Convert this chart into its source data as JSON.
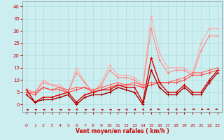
{
  "xlabel": "Vent moyen/en rafales ( km/h )",
  "bg_color": "#cceef0",
  "grid_color": "#aadddd",
  "x_ticks": [
    0,
    1,
    2,
    3,
    4,
    5,
    6,
    7,
    8,
    9,
    10,
    11,
    12,
    13,
    14,
    15,
    16,
    17,
    18,
    19,
    20,
    21,
    22,
    23
  ],
  "ylim": [
    -3,
    42
  ],
  "xlim": [
    -0.5,
    23.5
  ],
  "yticks": [
    0,
    5,
    10,
    15,
    20,
    25,
    30,
    35,
    40
  ],
  "lines": [
    {
      "x": [
        0,
        1,
        2,
        3,
        4,
        5,
        6,
        7,
        8,
        9,
        10,
        11,
        12,
        13,
        14,
        15,
        16,
        17,
        18,
        19,
        20,
        21,
        22,
        23
      ],
      "y": [
        6,
        5,
        10,
        8,
        8,
        5,
        15,
        9,
        5,
        9,
        16,
        12,
        12,
        11,
        8,
        36,
        21,
        15,
        15,
        15,
        13,
        25,
        31,
        31
      ],
      "color": "#ffaaaa",
      "lw": 0.8,
      "marker": "+",
      "ms": 3
    },
    {
      "x": [
        0,
        1,
        2,
        3,
        4,
        5,
        6,
        7,
        8,
        9,
        10,
        11,
        12,
        13,
        14,
        15,
        16,
        17,
        18,
        19,
        20,
        21,
        22,
        23
      ],
      "y": [
        6,
        5,
        9,
        8,
        7,
        5,
        13,
        9,
        5,
        8,
        14,
        11,
        11,
        10,
        7,
        31,
        18,
        13,
        14,
        14,
        12,
        22,
        28,
        28
      ],
      "color": "#ff8888",
      "lw": 0.8,
      "marker": "+",
      "ms": 3
    },
    {
      "x": [
        0,
        1,
        2,
        3,
        4,
        5,
        6,
        7,
        8,
        9,
        10,
        11,
        12,
        13,
        14,
        15,
        16,
        17,
        18,
        19,
        20,
        21,
        22,
        23
      ],
      "y": [
        5,
        5,
        7,
        6,
        7,
        6,
        7,
        7,
        6,
        7,
        8,
        9,
        8,
        9,
        8,
        9,
        9,
        9,
        10,
        11,
        13,
        13,
        14,
        15
      ],
      "color": "#ff6666",
      "lw": 0.8,
      "marker": "+",
      "ms": 3
    },
    {
      "x": [
        0,
        1,
        2,
        3,
        4,
        5,
        6,
        7,
        8,
        9,
        10,
        11,
        12,
        13,
        14,
        15,
        16,
        17,
        18,
        19,
        20,
        21,
        22,
        23
      ],
      "y": [
        5,
        4,
        7,
        6,
        6,
        5,
        6,
        7,
        5,
        6,
        7,
        8,
        8,
        8,
        7,
        8,
        9,
        9,
        9,
        10,
        12,
        12,
        13,
        14
      ],
      "color": "#ff4444",
      "lw": 0.8,
      "marker": "+",
      "ms": 3
    },
    {
      "x": [
        0,
        1,
        2,
        3,
        4,
        5,
        6,
        7,
        8,
        9,
        10,
        11,
        12,
        13,
        14,
        15,
        16,
        17,
        18,
        19,
        20,
        21,
        22,
        23
      ],
      "y": [
        6,
        1,
        3,
        3,
        4,
        5,
        1,
        4,
        5,
        6,
        6,
        8,
        7,
        7,
        1,
        19,
        9,
        5,
        5,
        8,
        5,
        5,
        10,
        14
      ],
      "color": "#dd0000",
      "lw": 1.0,
      "marker": "+",
      "ms": 3.5
    },
    {
      "x": [
        0,
        1,
        2,
        3,
        4,
        5,
        6,
        7,
        8,
        9,
        10,
        11,
        12,
        13,
        14,
        15,
        16,
        17,
        18,
        19,
        20,
        21,
        22,
        23
      ],
      "y": [
        4,
        1,
        2,
        2,
        3,
        4,
        0,
        3,
        4,
        4,
        5,
        7,
        6,
        5,
        0,
        14,
        7,
        4,
        4,
        7,
        4,
        4,
        9,
        13
      ],
      "color": "#aa0000",
      "lw": 1.0,
      "marker": "+",
      "ms": 3.5
    }
  ],
  "wind_arrows": {
    "x": [
      0,
      1,
      2,
      3,
      4,
      5,
      6,
      7,
      8,
      9,
      10,
      11,
      12,
      13,
      14,
      15,
      16,
      17,
      18,
      19,
      20,
      21,
      22,
      23
    ],
    "angles_deg": [
      225,
      225,
      225,
      270,
      225,
      225,
      270,
      225,
      270,
      225,
      225,
      225,
      270,
      270,
      270,
      90,
      45,
      270,
      270,
      270,
      315,
      315,
      45,
      45
    ]
  }
}
